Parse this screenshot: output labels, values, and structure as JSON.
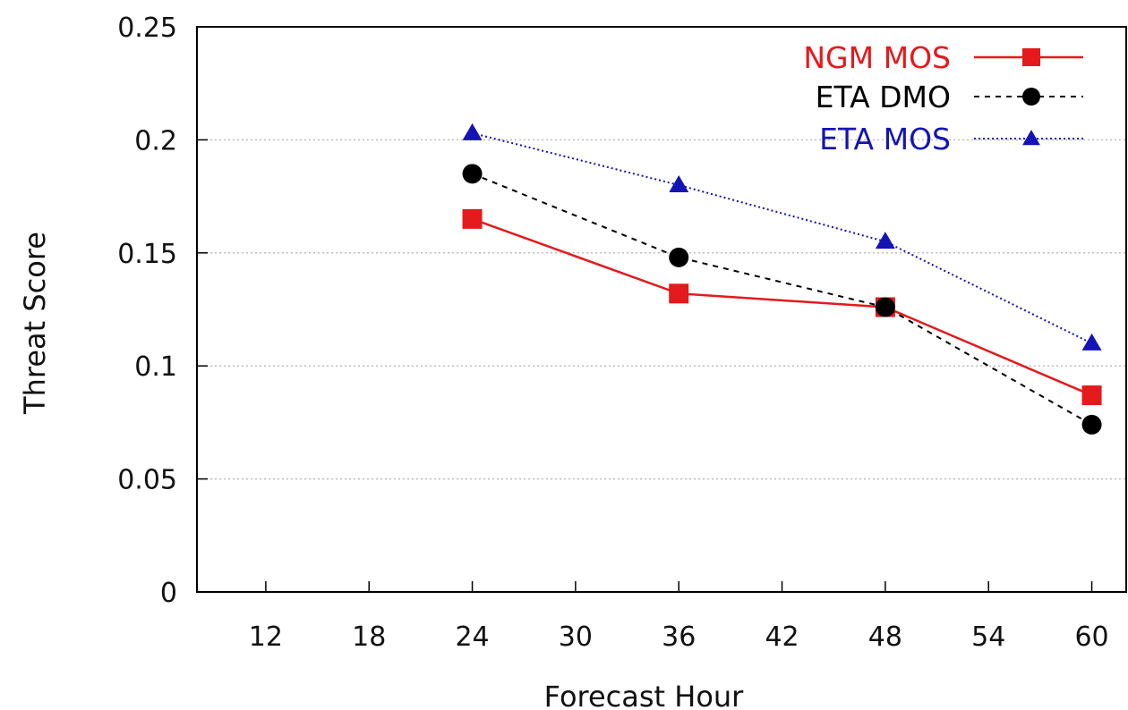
{
  "chart_data": {
    "type": "line",
    "title": "",
    "xlabel": "Forecast Hour",
    "ylabel": "Threat Score",
    "xlim": [
      8,
      62
    ],
    "ylim": [
      0,
      0.25
    ],
    "x_ticks": [
      12,
      18,
      24,
      30,
      36,
      42,
      48,
      54,
      60
    ],
    "x_tick_labels": [
      "12",
      "18",
      "24",
      "30",
      "36",
      "42",
      "48",
      "54",
      "60"
    ],
    "y_ticks": [
      0,
      0.05,
      0.1,
      0.15,
      0.2,
      0.25
    ],
    "y_tick_labels": [
      "0",
      "0.05",
      "0.1",
      "0.15",
      "0.2",
      "0.25"
    ],
    "grid": true,
    "legend_position": "top-right",
    "x": [
      24,
      36,
      48,
      60
    ],
    "series": [
      {
        "name": "NGM MOS",
        "values": [
          0.165,
          0.132,
          0.126,
          0.087
        ],
        "color": "#e41a1c",
        "marker": "square",
        "line": "solid"
      },
      {
        "name": "ETA DMO",
        "values": [
          0.185,
          0.148,
          0.126,
          0.074
        ],
        "color": "#000000",
        "marker": "circle",
        "line": "dashed"
      },
      {
        "name": "ETA MOS",
        "values": [
          0.203,
          0.18,
          0.155,
          0.11
        ],
        "color": "#1414b4",
        "marker": "triangle",
        "line": "dotted"
      }
    ]
  }
}
